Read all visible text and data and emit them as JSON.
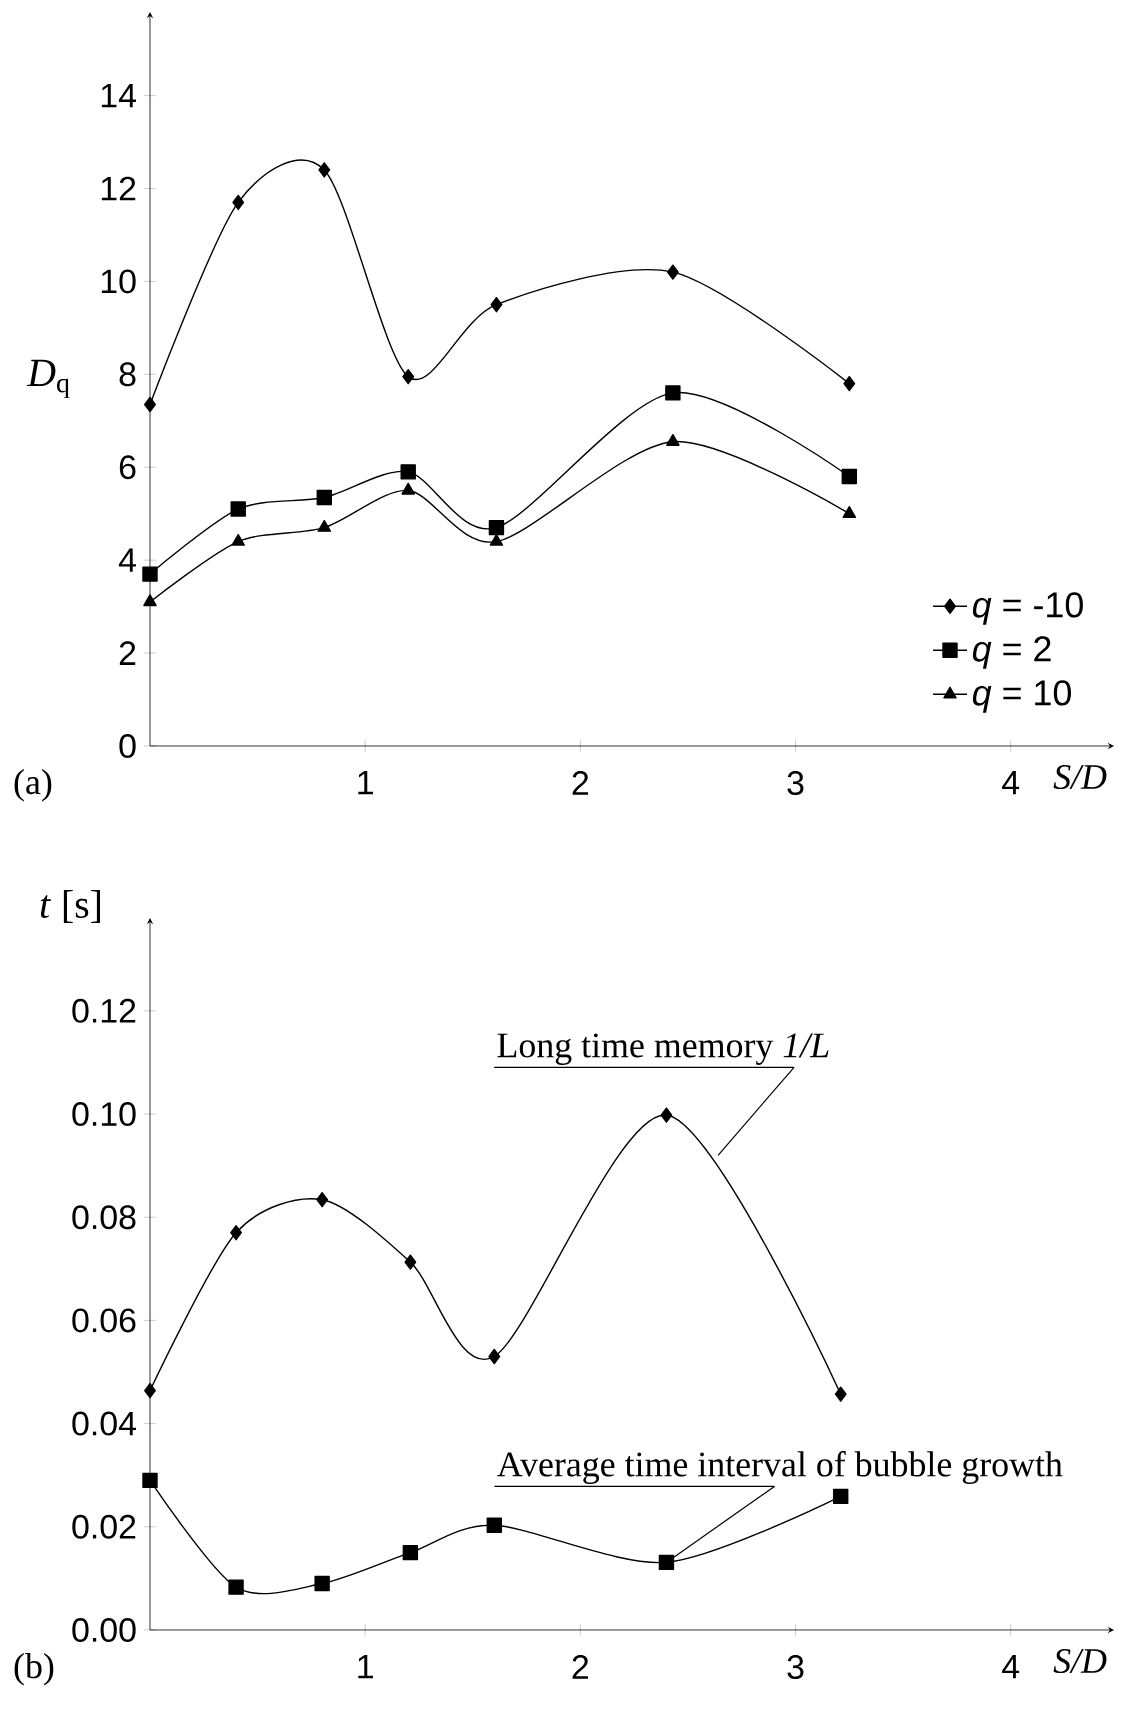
{
  "chart_data": [
    {
      "type": "line",
      "xlabel": "S/D",
      "ylabel": "*D*$_{q}$",
      "x": [
        0,
        0.41,
        0.81,
        1.2,
        1.61,
        2.43,
        3.25
      ],
      "xlim": [
        0,
        4.48
      ],
      "ylim": [
        0,
        15.8
      ],
      "xticks": [
        1,
        2,
        3,
        4
      ],
      "yticks": [
        0,
        2,
        4,
        6,
        8,
        10,
        12,
        14
      ],
      "legend": "bottom right",
      "annotations": [
        "(a)"
      ],
      "series": [
        {
          "name": "*q* = -10",
          "color": "#000000",
          "marker": "diamond",
          "values": [
            7.35,
            11.7,
            12.4,
            7.95,
            9.5,
            10.2,
            7.8
          ]
        },
        {
          "name": "*q* =  2",
          "color": "#000000",
          "marker": "square",
          "values": [
            3.7,
            5.1,
            5.35,
            5.9,
            4.7,
            7.6,
            5.8
          ]
        },
        {
          "name": "*q* = 10",
          "color": "#000000",
          "marker": "triangle",
          "values": [
            3.1,
            4.4,
            4.7,
            5.5,
            4.4,
            6.55,
            5.0
          ]
        }
      ]
    },
    {
      "type": "line",
      "xlabel": "S/D",
      "ylabel": "*t* [s]",
      "x": [
        0,
        0.4,
        0.8,
        1.21,
        1.6,
        2.4,
        3.21
      ],
      "xlim": [
        0,
        4.48
      ],
      "ylim": [
        0,
        0.138
      ],
      "xticks": [
        1,
        2,
        3,
        4
      ],
      "yticks": [
        {
          "value": 0,
          "label": "0.00"
        },
        {
          "value": 0.02,
          "label": "0.02"
        },
        {
          "value": 0.04,
          "label": "0.04"
        },
        {
          "value": 0.06,
          "label": "0.06"
        },
        {
          "value": 0.08,
          "label": "0.08"
        },
        {
          "value": 0.1,
          "label": "0.10"
        },
        {
          "value": 0.12,
          "label": "0.12"
        }
      ],
      "annotations": [
        "(b)",
        {
          "text": "Long time memory  *1/L*",
          "x": 2.64,
          "y": 0.092
        },
        {
          "text": "Average time interval of bubble growth",
          "x": 2.4,
          "y": 0.0131
        }
      ],
      "series": [
        {
          "color": "#000000",
          "marker": "diamond",
          "values": [
            0.0464,
            0.077,
            0.0834,
            0.0713,
            0.053,
            0.0998,
            0.0457
          ]
        },
        {
          "color": "#000000",
          "marker": "square",
          "values": [
            0.029,
            0.0083,
            0.009,
            0.015,
            0.0203,
            0.0131,
            0.0259
          ]
        }
      ]
    }
  ]
}
